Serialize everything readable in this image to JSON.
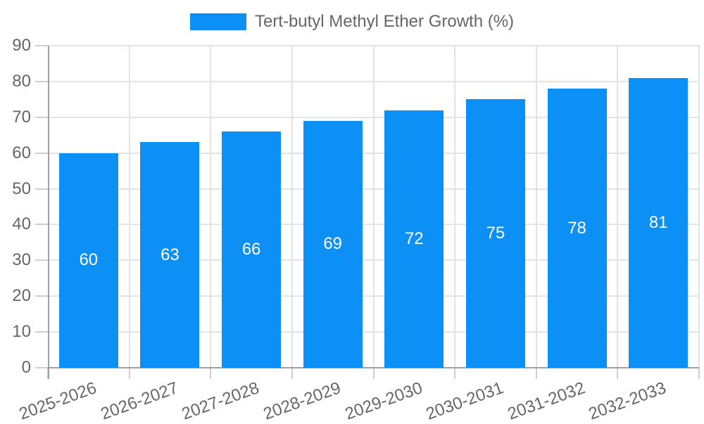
{
  "chart_data": {
    "type": "bar",
    "title": "Tert-butyl Methyl Ether Growth (%)",
    "legend_position": "top",
    "categories": [
      "2025-2026",
      "2026-2027",
      "2027-2028",
      "2028-2029",
      "2029-2030",
      "2030-2031",
      "2031-2032",
      "2032-2033"
    ],
    "values": [
      60,
      63,
      66,
      69,
      72,
      75,
      78,
      81
    ],
    "xlabel": "",
    "ylabel": "",
    "ylim": [
      0,
      90
    ],
    "yticks": [
      0,
      10,
      20,
      30,
      40,
      50,
      60,
      70,
      80,
      90
    ],
    "grid": true,
    "bar_value_labels_shown": true,
    "colors": {
      "bar": "#0d90f5",
      "grid": "#e3e3e3",
      "axis": "#a0a0a0",
      "tick_mark": "#cfcfcf",
      "tick_text": "#666666",
      "bar_label": "#ffffff"
    }
  }
}
